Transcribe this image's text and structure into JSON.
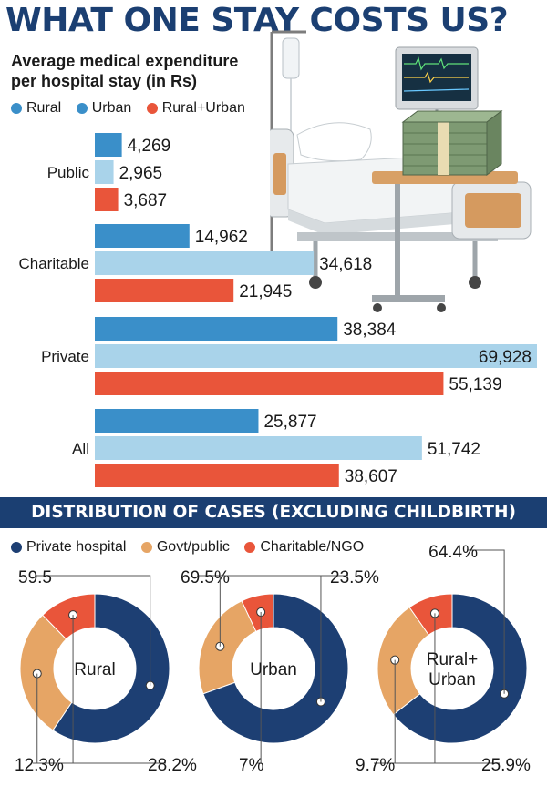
{
  "title": "WHAT ONE STAY COSTS US?",
  "subtitle": "Average medical expenditure per hospital stay (in Rs)",
  "legend": [
    {
      "label": "Rural",
      "color": "#3a8fc9"
    },
    {
      "label": "Urban",
      "color": "#a9d3ea"
    },
    {
      "label": "Rural+Urban",
      "color": "#e9553a"
    }
  ],
  "section2_title": "DISTRIBUTION OF CASES (EXCLUDING CHILDBIRTH)",
  "legend2": [
    {
      "label": "Private hospital",
      "color": "#1d3f73"
    },
    {
      "label": "Govt/public",
      "color": "#e6a565"
    },
    {
      "label": "Charitable/NGO",
      "color": "#e9553a"
    }
  ],
  "chart_data": [
    {
      "type": "bar",
      "orientation": "horizontal",
      "categories": [
        "Public",
        "Charitable",
        "Private",
        "All"
      ],
      "series": [
        {
          "name": "Rural",
          "values": [
            4269,
            14962,
            38384,
            25877
          ],
          "labels": [
            "4,269",
            "14,962",
            "38,384",
            "25,877"
          ]
        },
        {
          "name": "Urban",
          "values": [
            2965,
            34618,
            69928,
            51742
          ],
          "labels": [
            "2,965",
            "34,618",
            "69,928",
            "51,742"
          ]
        },
        {
          "name": "Rural+Urban",
          "values": [
            3687,
            21945,
            55139,
            38607
          ],
          "labels": [
            "3,687",
            "21,945",
            "55,139",
            "38,607"
          ]
        }
      ],
      "xlim": [
        0,
        69928
      ],
      "grid": false,
      "legend_position": "top"
    },
    {
      "type": "pie",
      "style": "donut",
      "charts": [
        {
          "center_label": [
            "Rural"
          ],
          "slices": [
            {
              "name": "Private hospital",
              "value": 59.5,
              "label": "59.5"
            },
            {
              "name": "Govt/public",
              "value": 28.2,
              "label": "28.2%"
            },
            {
              "name": "Charitable/NGO",
              "value": 12.3,
              "label": "12.3%"
            }
          ]
        },
        {
          "center_label": [
            "Urban"
          ],
          "slices": [
            {
              "name": "Private hospital",
              "value": 69.5,
              "label": "69.5%"
            },
            {
              "name": "Govt/public",
              "value": 23.5,
              "label": "23.5%"
            },
            {
              "name": "Charitable/NGO",
              "value": 7,
              "label": "7%"
            }
          ]
        },
        {
          "center_label": [
            "Rural+",
            "Urban"
          ],
          "slices": [
            {
              "name": "Private hospital",
              "value": 64.4,
              "label": "64.4%"
            },
            {
              "name": "Govt/public",
              "value": 25.9,
              "label": "25.9%"
            },
            {
              "name": "Charitable/NGO",
              "value": 9.7,
              "label": "9.7%"
            }
          ]
        }
      ]
    }
  ]
}
